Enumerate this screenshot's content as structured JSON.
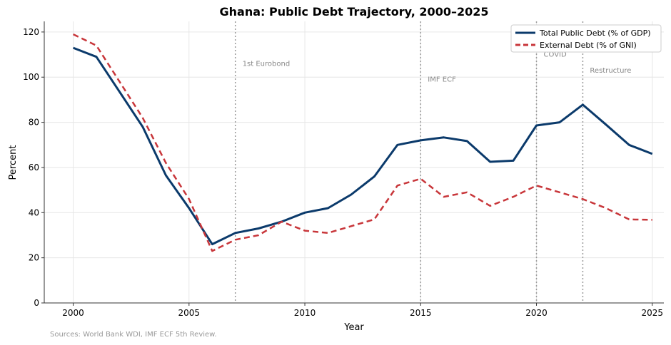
{
  "chart_data": {
    "type": "line",
    "title": "Ghana: Public Debt Trajectory, 2000–2025",
    "xlabel": "Year",
    "ylabel": "Percent",
    "xlim": [
      1998.75,
      2025.5
    ],
    "ylim": [
      0,
      124.7
    ],
    "xticks": [
      2000,
      2005,
      2010,
      2015,
      2020,
      2025
    ],
    "yticks": [
      0,
      20,
      40,
      60,
      80,
      100,
      120
    ],
    "grid": true,
    "legend_position": "top-right",
    "x": [
      2000,
      2001,
      2002,
      2003,
      2004,
      2005,
      2006,
      2007,
      2008,
      2009,
      2010,
      2011,
      2012,
      2013,
      2014,
      2015,
      2016,
      2017,
      2018,
      2019,
      2020,
      2021,
      2022,
      2023,
      2024,
      2025
    ],
    "series": [
      {
        "name": "Total Public Debt (% of GDP)",
        "color": "#0b3a6b",
        "style": "solid",
        "values": [
          113,
          109,
          93.5,
          78,
          56.5,
          42,
          26,
          31,
          33,
          36,
          40,
          42,
          48,
          56,
          70,
          72,
          73.3,
          71.7,
          62.5,
          63,
          78.6,
          80,
          87.8,
          79,
          70,
          66
        ]
      },
      {
        "name": "External Debt (% of GNI)",
        "color": "#c8363a",
        "style": "dashed",
        "values": [
          119,
          114,
          98,
          82,
          62,
          46,
          23,
          28,
          30,
          36,
          32,
          31,
          34,
          37,
          52,
          55,
          47,
          49,
          43,
          47,
          52,
          49,
          46,
          42,
          37,
          36.8
        ]
      }
    ],
    "annotations": [
      {
        "x": 2007,
        "label": "1st Eurobond",
        "label_y": 105
      },
      {
        "x": 2015,
        "label": "IMF ECF",
        "label_y": 98
      },
      {
        "x": 2020,
        "label": "COVID",
        "label_y": 109
      },
      {
        "x": 2022,
        "label": "Restructure",
        "label_y": 102
      }
    ],
    "source_note": "Sources: World Bank WDI, IMF ECF 5th Review."
  }
}
